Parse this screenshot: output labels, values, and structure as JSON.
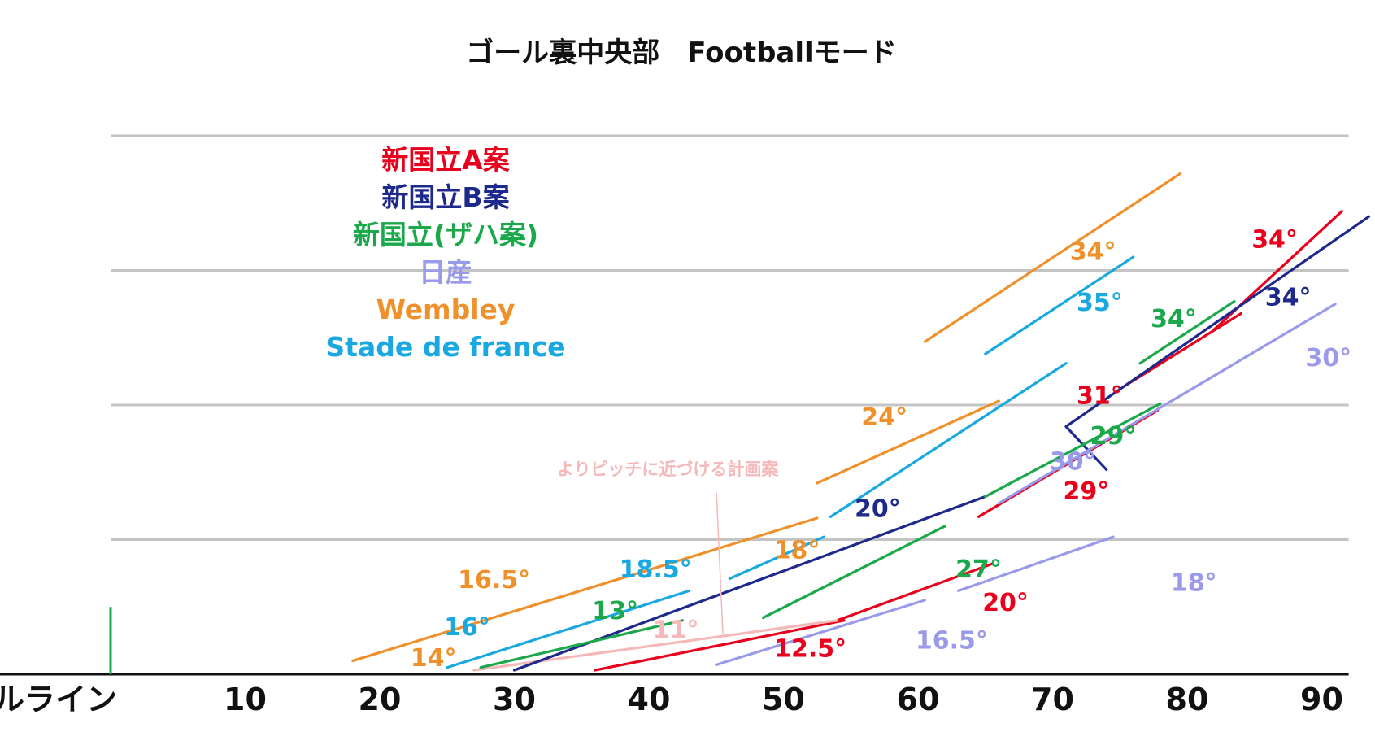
{
  "chart_data": {
    "type": "line",
    "title": "ゴール裏中央部　Footballモード",
    "xlabel": "",
    "ylabel": "",
    "xlim": [
      0,
      92
    ],
    "ylim": [
      0,
      4
    ],
    "grid": "horizontal",
    "goal_line_label": "ゴールライン",
    "x_ticks": [
      {
        "value": 0,
        "label": "ゴールライン"
      },
      {
        "value": 10,
        "label": "10"
      },
      {
        "value": 20,
        "label": "20"
      },
      {
        "value": 30,
        "label": "30"
      },
      {
        "value": 40,
        "label": "40"
      },
      {
        "value": 50,
        "label": "50"
      },
      {
        "value": 60,
        "label": "60"
      },
      {
        "value": 70,
        "label": "70"
      },
      {
        "value": 80,
        "label": "80"
      },
      {
        "value": 90,
        "label": "90"
      }
    ],
    "y_gridlines": [
      1,
      2,
      3,
      4
    ],
    "legend": [
      {
        "name": "新国立A案",
        "color": "#e8001c"
      },
      {
        "name": "新国立B案",
        "color": "#1d2a8c"
      },
      {
        "name": "新国立(ザハ案)",
        "color": "#1aa84b"
      },
      {
        "name": "日産",
        "color": "#9a9aea"
      },
      {
        "name": "Wembley",
        "color": "#f0902a"
      },
      {
        "name": "Stade de france",
        "color": "#1aa8e0"
      }
    ],
    "annotation": {
      "text": "よりピッチに近づける計画案",
      "color": "#f5b8b8",
      "points_to": [
        45.5,
        0.3
      ],
      "from": [
        42,
        1.3
      ]
    },
    "series": [
      {
        "name": "新国立A案",
        "color": "#e8001c",
        "segments": [
          {
            "start": [
              36,
              0.03
            ],
            "end": [
              54.5,
              0.4
            ],
            "angle_label": "12.5°",
            "label_at": [
              52,
              0.13
            ]
          },
          {
            "start": [
              54,
              0.4
            ],
            "end": [
              65.5,
              0.82
            ],
            "angle_label": "20°",
            "label_at": [
              66.5,
              0.47
            ]
          },
          {
            "start": [
              64.5,
              1.17
            ],
            "end": [
              77.8,
              1.96
            ],
            "angle_label": "29°",
            "label_at": [
              72.5,
              1.3
            ]
          },
          {
            "start": [
              75.5,
              2.15
            ],
            "end": [
              84,
              2.68
            ],
            "angle_label": "31°",
            "label_at": [
              73.5,
              2.01
            ]
          },
          {
            "start": [
              82,
              2.56
            ],
            "end": [
              91.5,
              3.44
            ],
            "angle_label": "34°",
            "label_at": [
              86.5,
              3.17
            ]
          }
        ]
      },
      {
        "name": "新国立A案",
        "color": "#f5b8b8",
        "segments": [
          {
            "start": [
              27,
              0.03
            ],
            "end": [
              54,
              0.4
            ],
            "angle_label": "11°",
            "label_at": [
              42,
              0.27
            ]
          }
        ]
      },
      {
        "name": "新国立B案",
        "color": "#1d2a8c",
        "segments": [
          {
            "start": [
              30,
              0.03
            ],
            "end": [
              65,
              1.32
            ],
            "angle_label": "20°",
            "label_at": [
              57,
              1.17
            ]
          },
          {
            "start": [
              71,
              1.84
            ],
            "end": [
              74,
              1.52
            ],
            "angle_label": "",
            "label_at": [
              0,
              0
            ]
          },
          {
            "start": [
              71,
              1.84
            ],
            "end": [
              93.5,
              3.4
            ],
            "angle_label": "34°",
            "label_at": [
              87.5,
              2.74
            ]
          }
        ]
      },
      {
        "name": "新国立(ザハ案)",
        "color": "#1aa84b",
        "segments": [
          {
            "start": [
              27.5,
              0.05
            ],
            "end": [
              42.5,
              0.4
            ],
            "angle_label": "13°",
            "label_at": [
              37.5,
              0.41
            ]
          },
          {
            "start": [
              48.5,
              0.42
            ],
            "end": [
              62,
              1.1
            ],
            "angle_label": "27°",
            "label_at": [
              64.5,
              0.72
            ]
          },
          {
            "start": [
              65,
              1.32
            ],
            "end": [
              78,
              2.01
            ],
            "angle_label": "29°",
            "label_at": [
              74.5,
              1.71
            ]
          },
          {
            "start": [
              76.5,
              2.31
            ],
            "end": [
              83.5,
              2.77
            ],
            "angle_label": "34°",
            "label_at": [
              79,
              2.58
            ]
          }
        ]
      },
      {
        "name": "日産",
        "color": "#9a9aea",
        "segments": [
          {
            "start": [
              45,
              0.07
            ],
            "end": [
              60.5,
              0.55
            ],
            "angle_label": "16.5°",
            "label_at": [
              62.5,
              0.19
            ]
          },
          {
            "start": [
              63,
              0.62
            ],
            "end": [
              74.5,
              1.02
            ],
            "angle_label": "18°",
            "label_at": [
              80.5,
              0.62
            ]
          },
          {
            "start": [
              66,
              1.27
            ],
            "end": [
              91,
              2.75
            ],
            "angle_label": "30°",
            "label_at": [
              71.5,
              1.52
            ]
          },
          {
            "start": [
              66,
              1.27
            ],
            "end": [
              91,
              2.75
            ],
            "angle_label": "30°",
            "label_at": [
              90.5,
              2.29
            ]
          }
        ]
      },
      {
        "name": "Wembley",
        "color": "#f0902a",
        "segments": [
          {
            "start": [
              18,
              0.1
            ],
            "end": [
              52.5,
              1.16
            ],
            "angle_label": "14°",
            "label_at": [
              24,
              0.06
            ]
          },
          {
            "start": [
              18,
              0.1
            ],
            "end": [
              52.5,
              1.16
            ],
            "angle_label": "16.5°",
            "label_at": [
              28.5,
              0.64
            ]
          },
          {
            "start": [
              18,
              0.1
            ],
            "end": [
              52.5,
              1.16
            ],
            "angle_label": "18°",
            "label_at": [
              51,
              0.86
            ]
          },
          {
            "start": [
              52.5,
              1.42
            ],
            "end": [
              66,
              2.03
            ],
            "angle_label": "24°",
            "label_at": [
              57.5,
              1.85
            ]
          },
          {
            "start": [
              60.5,
              2.47
            ],
            "end": [
              79.5,
              3.72
            ],
            "angle_label": "34°",
            "label_at": [
              73,
              3.08
            ]
          }
        ]
      },
      {
        "name": "Stade de france",
        "color": "#1aa8e0",
        "segments": [
          {
            "start": [
              25,
              0.05
            ],
            "end": [
              43,
              0.62
            ],
            "angle_label": "16°",
            "label_at": [
              26.5,
              0.29
            ]
          },
          {
            "start": [
              25,
              0.05
            ],
            "end": [
              43,
              0.62
            ],
            "angle_label": "18.5°",
            "label_at": [
              40.5,
              0.72
            ]
          },
          {
            "start": [
              46,
              0.71
            ],
            "end": [
              53,
              1.02
            ],
            "angle_label": "",
            "label_at": [
              0,
              0
            ]
          },
          {
            "start": [
              53.5,
              1.17
            ],
            "end": [
              71,
              2.31
            ],
            "angle_label": "",
            "label_at": [
              0,
              0
            ]
          },
          {
            "start": [
              65,
              2.38
            ],
            "end": [
              76,
              3.1
            ],
            "angle_label": "35°",
            "label_at": [
              73.5,
              2.7
            ]
          }
        ]
      }
    ]
  }
}
